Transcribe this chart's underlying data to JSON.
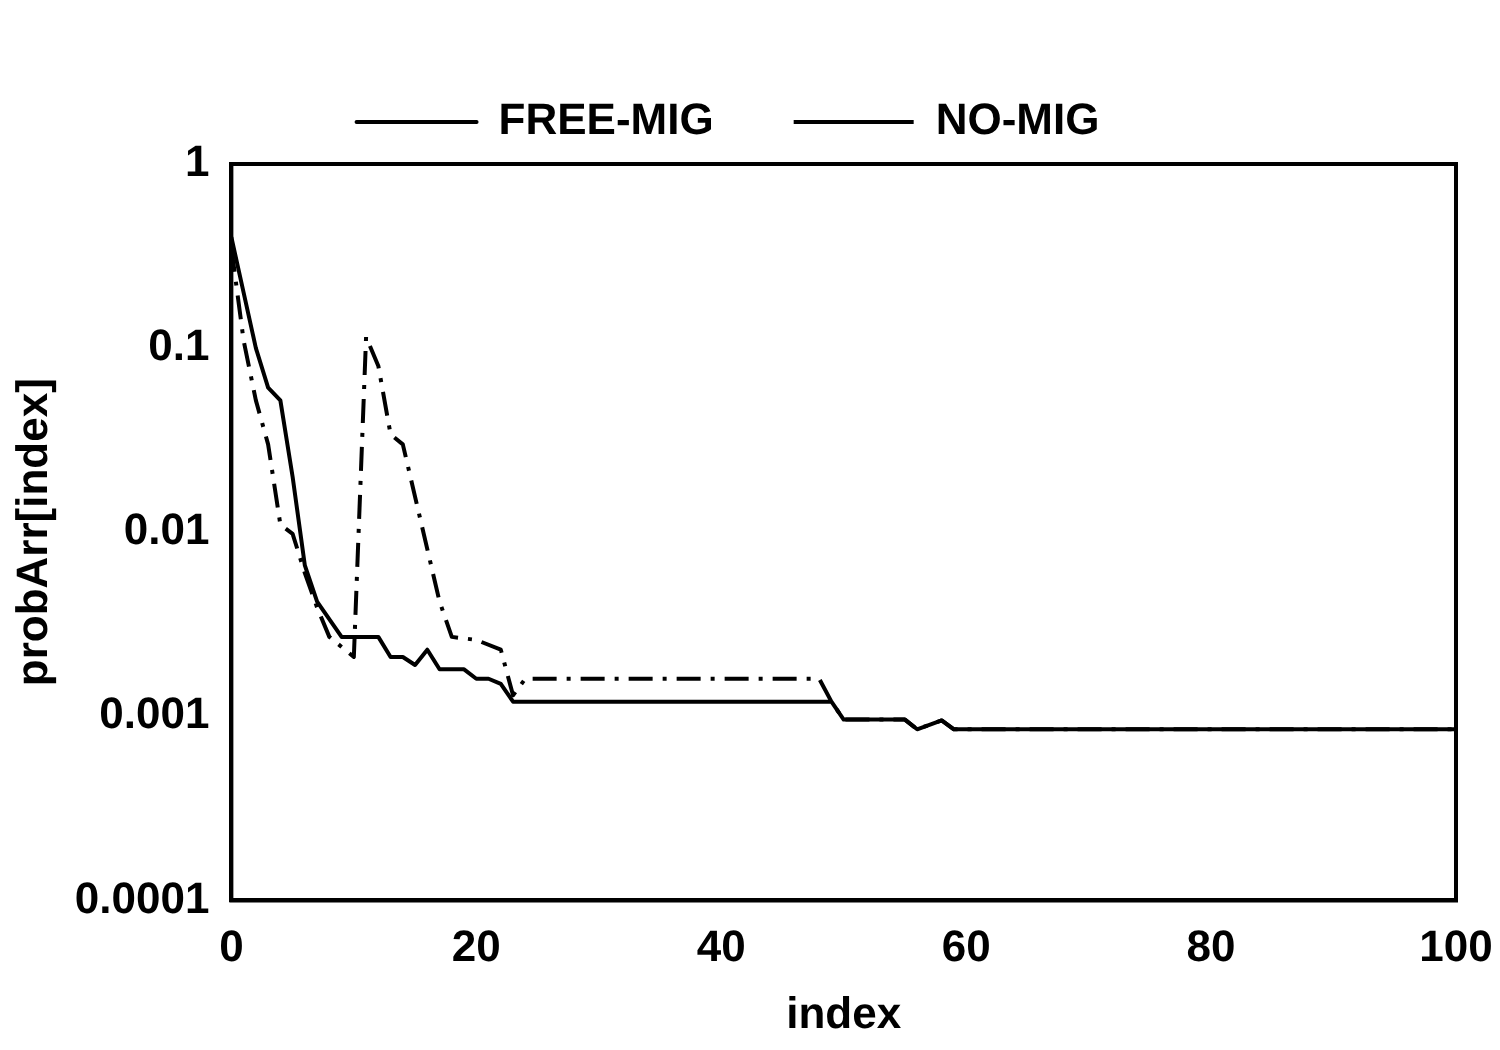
{
  "chart_data": {
    "type": "line",
    "xlabel": "index",
    "ylabel": "probArr[index]",
    "log": "y",
    "xlim": [
      0,
      100
    ],
    "xticks": [
      0,
      20,
      40,
      60,
      80,
      100
    ],
    "ylim": [
      0.0001,
      1
    ],
    "yticks": [
      0.0001,
      0.001,
      0.01,
      0.1,
      1
    ],
    "grid": false,
    "legend": "top",
    "marker": "none",
    "series": [
      {
        "name": "FREE-MIG",
        "color": "#000000",
        "line_style": "solid",
        "x": [
          0,
          1,
          2,
          3,
          4,
          5,
          6,
          7,
          9,
          12,
          13,
          14,
          15,
          16,
          17,
          19,
          20,
          21,
          22,
          23,
          49,
          50,
          55,
          56,
          58,
          59,
          100
        ],
        "values": [
          0.4,
          0.2,
          0.1,
          0.061,
          0.052,
          0.02,
          0.0066,
          0.0042,
          0.0027,
          0.0027,
          0.0021,
          0.0021,
          0.0019,
          0.0023,
          0.0018,
          0.0018,
          0.0016,
          0.0016,
          0.0015,
          0.0012,
          0.0012,
          0.00096,
          0.00096,
          0.00085,
          0.00095,
          0.00085,
          0.00085
        ]
      },
      {
        "name": "NO-MIG",
        "color": "#000000",
        "line_style": "dashed",
        "x": [
          0,
          1,
          2,
          3,
          4,
          5,
          6,
          7,
          8,
          10,
          11,
          12,
          13,
          14,
          17,
          18,
          20,
          22,
          23,
          24,
          48,
          49,
          50,
          55,
          56,
          58,
          59,
          100
        ],
        "values": [
          0.35,
          0.11,
          0.052,
          0.03,
          0.011,
          0.0098,
          0.006,
          0.0039,
          0.0027,
          0.0021,
          0.115,
          0.08,
          0.034,
          0.03,
          0.0042,
          0.0027,
          0.0026,
          0.0023,
          0.0013,
          0.0016,
          0.0016,
          0.0012,
          0.00096,
          0.00096,
          0.00085,
          0.00095,
          0.00085,
          0.00085
        ]
      }
    ]
  }
}
